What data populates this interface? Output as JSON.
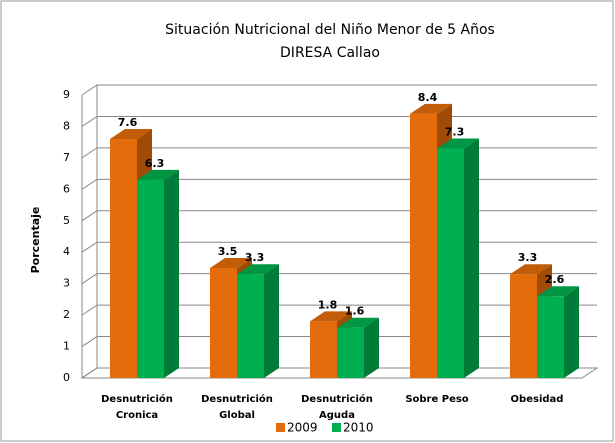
{
  "chart_data": {
    "type": "bar3d",
    "title": "Situación Nutricional del Niño Menor de 5 Años",
    "subtitle": "DIRESA Callao",
    "y_label": "Porcentaje",
    "categories": [
      "Desnutrición Cronica",
      "Desnutrición Global",
      "Desnutrición Aguda",
      "Sobre Peso",
      "Obesidad"
    ],
    "series": [
      {
        "name": "2009",
        "color": "#e46c0a",
        "values": [
          7.6,
          3.5,
          1.8,
          8.4,
          3.3
        ]
      },
      {
        "name": "2010",
        "color": "#00b050",
        "values": [
          6.3,
          3.3,
          1.6,
          7.3,
          2.6
        ]
      }
    ],
    "ylim": [
      0,
      9
    ],
    "yticks": [
      0,
      1,
      2,
      3,
      4,
      5,
      6,
      7,
      8,
      9
    ],
    "grid": true,
    "legend": "bottom"
  }
}
